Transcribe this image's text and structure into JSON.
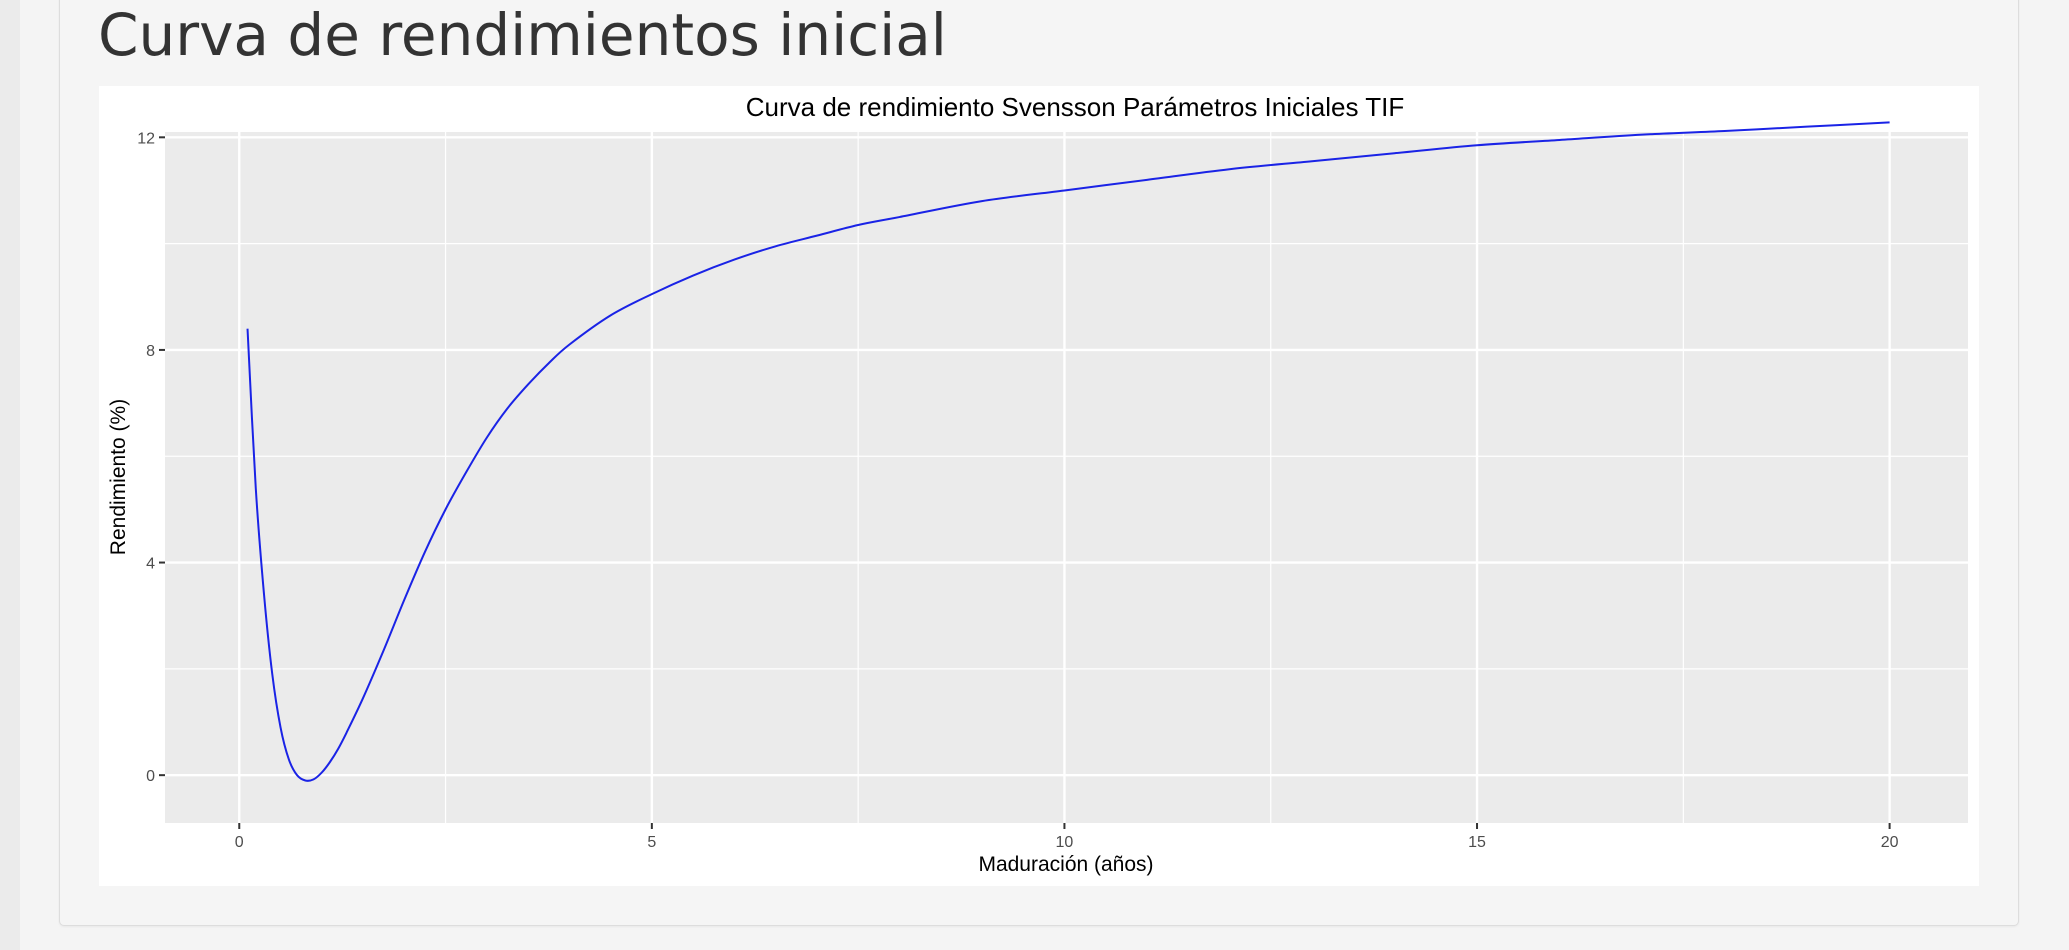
{
  "page": {
    "title": "Curva de rendimientos inicial"
  },
  "colors": {
    "panel_background": "#ebebeb",
    "grid": "#ffffff",
    "line": "#1a23e6",
    "tick_text": "#4d4d4d"
  },
  "chart_data": {
    "type": "line",
    "title": "Curva de rendimiento Svensson Parámetros Iniciales TIF",
    "xlabel": "Maduración (años)",
    "ylabel": "Rendimiento (%)",
    "xlim": [
      -0.9,
      20.95
    ],
    "ylim": [
      -0.9,
      12.1
    ],
    "x_ticks": [
      0,
      5,
      10,
      15,
      20
    ],
    "x_tick_labels": [
      "0",
      "5",
      "10",
      "15",
      "20"
    ],
    "y_ticks": [
      0,
      4,
      8,
      12
    ],
    "y_tick_labels": [
      "0",
      "4",
      "8",
      "12"
    ],
    "grid": true,
    "legend": "none",
    "series": [
      {
        "x": [
          0.1,
          0.2,
          0.3,
          0.4,
          0.5,
          0.6,
          0.7,
          0.8,
          0.9,
          1.0,
          1.1,
          1.2,
          1.3,
          1.5,
          1.75,
          2.0,
          2.25,
          2.5,
          2.75,
          3.0,
          3.25,
          3.5,
          3.75,
          4.0,
          4.5,
          5.0,
          5.5,
          6.0,
          6.5,
          7.0,
          7.5,
          8.0,
          9.0,
          10.0,
          11.0,
          12.0,
          13.0,
          14.0,
          15.0,
          16.0,
          17.0,
          18.0,
          19.0,
          20.0
        ],
        "y": [
          8.4,
          5.4,
          3.4,
          1.9,
          0.9,
          0.3,
          0.0,
          -0.1,
          -0.08,
          0.05,
          0.25,
          0.5,
          0.8,
          1.45,
          2.35,
          3.3,
          4.2,
          5.0,
          5.7,
          6.35,
          6.9,
          7.35,
          7.75,
          8.1,
          8.65,
          9.05,
          9.4,
          9.7,
          9.95,
          10.15,
          10.35,
          10.5,
          10.8,
          11.0,
          11.2,
          11.4,
          11.55,
          11.7,
          11.85,
          11.95,
          12.05,
          12.12,
          12.2,
          12.28
        ]
      }
    ]
  }
}
